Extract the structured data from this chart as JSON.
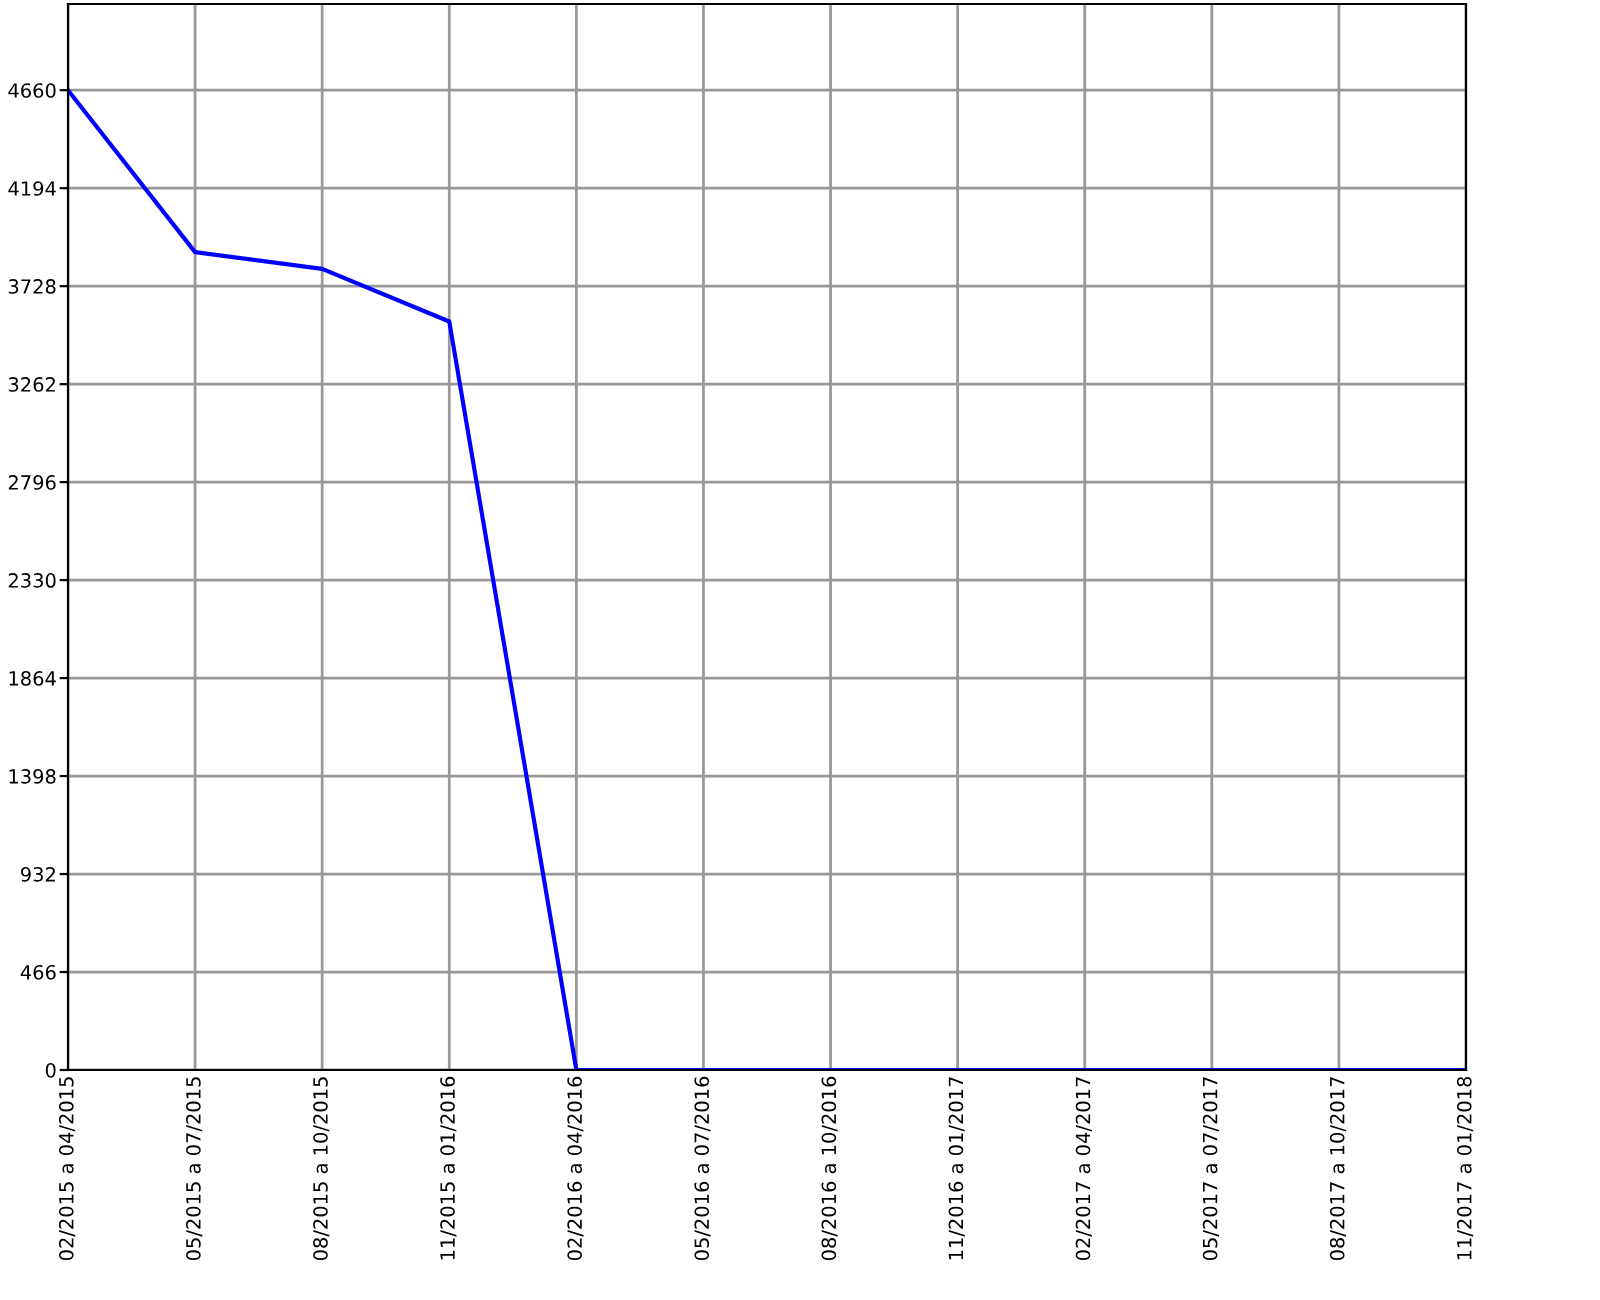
{
  "chart_data": {
    "type": "line",
    "categories": [
      "02/2015 a 04/2015",
      "05/2015 a 07/2015",
      "08/2015 a 10/2015",
      "11/2015 a 01/2016",
      "02/2016 a 04/2016",
      "05/2016 a 07/2016",
      "08/2016 a 10/2016",
      "11/2016 a 01/2017",
      "02/2017 a 04/2017",
      "05/2017 a 07/2017",
      "08/2017 a 10/2017",
      "11/2017 a 01/2018"
    ],
    "series": [
      {
        "color": "#0000ff",
        "values": [
          4660,
          3890,
          3810,
          3560,
          0,
          0,
          0,
          0,
          0,
          0,
          0,
          0
        ]
      }
    ],
    "ylim": [
      0,
      5070
    ],
    "yticks": [
      0,
      466,
      932,
      1398,
      1864,
      2330,
      2796,
      3262,
      3728,
      4194,
      4660
    ],
    "grid": true,
    "marker": "none",
    "line_style": "solid"
  }
}
